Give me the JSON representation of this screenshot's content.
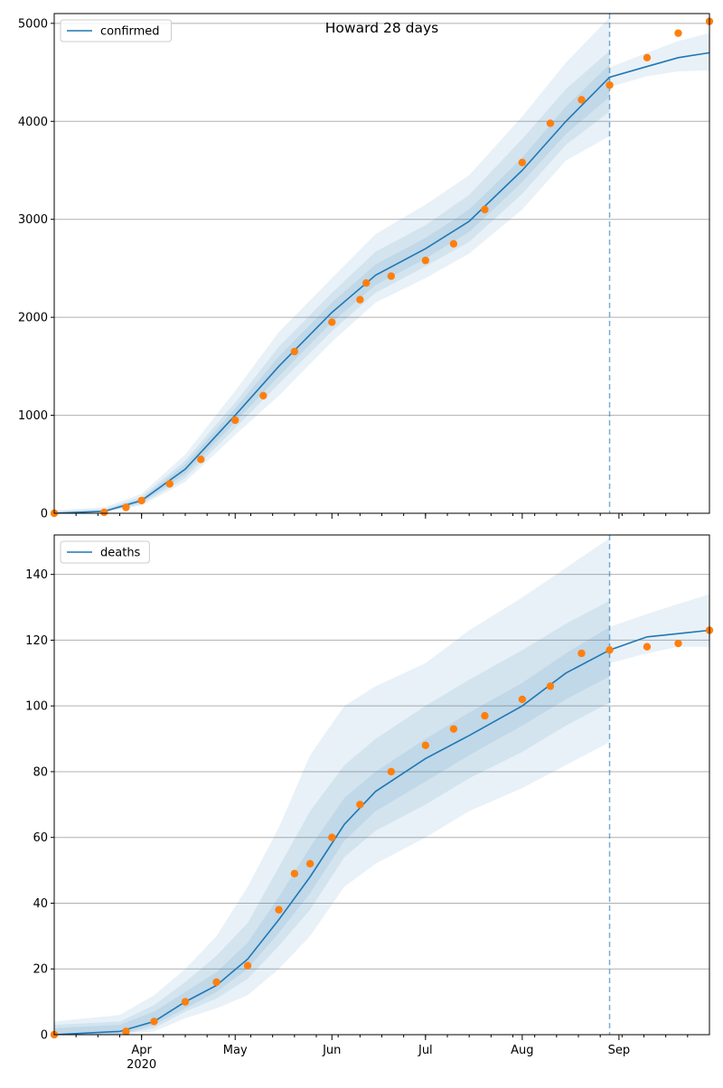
{
  "colors": {
    "model": "#1f77b4",
    "observed": "#ff7f0e",
    "band": "#1f77b4",
    "grid": "#b0b0b0"
  },
  "chart_data": [
    {
      "type": "line",
      "title": "Howard 28 days",
      "legend": "top-left",
      "grid": "horizontal",
      "xlim": [
        "2020-03-04",
        "2020-09-30"
      ],
      "ylim": [
        0,
        5100
      ],
      "forecast_start": "2020-08-29",
      "x_ticks": [
        {
          "date": "2020-04-01",
          "label": "Apr"
        },
        {
          "date": "2020-05-01",
          "label": "May"
        },
        {
          "date": "2020-06-01",
          "label": "Jun"
        },
        {
          "date": "2020-07-01",
          "label": "Jul"
        },
        {
          "date": "2020-08-01",
          "label": "Aug"
        },
        {
          "date": "2020-09-01",
          "label": "Sep"
        }
      ],
      "x_year_label": "2020",
      "y_ticks": [
        0,
        1000,
        2000,
        3000,
        4000,
        5000
      ],
      "series": [
        {
          "name": "confirmed",
          "kind": "model",
          "x": [
            "2020-03-04",
            "2020-03-20",
            "2020-04-01",
            "2020-04-15",
            "2020-05-01",
            "2020-05-15",
            "2020-06-01",
            "2020-06-15",
            "2020-07-01",
            "2020-07-15",
            "2020-08-01",
            "2020-08-15",
            "2020-08-29",
            "2020-09-10",
            "2020-09-20",
            "2020-09-30"
          ],
          "values": [
            0,
            20,
            130,
            450,
            1000,
            1500,
            2050,
            2430,
            2700,
            2980,
            3500,
            4000,
            4450,
            4560,
            4650,
            4700
          ]
        },
        {
          "name": "",
          "kind": "observed",
          "x": [
            "2020-03-04",
            "2020-03-20",
            "2020-03-27",
            "2020-04-01",
            "2020-04-10",
            "2020-04-20",
            "2020-05-01",
            "2020-05-10",
            "2020-05-20",
            "2020-06-01",
            "2020-06-10",
            "2020-06-12",
            "2020-06-20",
            "2020-07-01",
            "2020-07-10",
            "2020-07-20",
            "2020-08-01",
            "2020-08-10",
            "2020-08-20",
            "2020-08-29",
            "2020-09-10",
            "2020-09-20",
            "2020-09-30"
          ],
          "values": [
            0,
            10,
            60,
            130,
            300,
            550,
            950,
            1200,
            1650,
            1950,
            2180,
            2350,
            2420,
            2580,
            2750,
            3100,
            3580,
            3980,
            4220,
            4370,
            4650,
            4900,
            5020
          ]
        }
      ],
      "bands": [
        {
          "x": [
            "2020-03-04",
            "2020-03-20",
            "2020-04-01",
            "2020-04-15",
            "2020-05-01",
            "2020-05-15",
            "2020-06-01",
            "2020-06-15",
            "2020-07-01",
            "2020-07-15",
            "2020-08-01",
            "2020-08-15",
            "2020-08-29"
          ],
          "lower": [
            0,
            10,
            80,
            320,
            800,
            1200,
            1750,
            2150,
            2400,
            2650,
            3100,
            3600,
            3850
          ],
          "upper": [
            30,
            60,
            200,
            600,
            1250,
            1850,
            2400,
            2850,
            3150,
            3450,
            4050,
            4600,
            5060
          ]
        },
        {
          "x": [
            "2020-03-04",
            "2020-03-20",
            "2020-04-01",
            "2020-04-15",
            "2020-05-01",
            "2020-05-15",
            "2020-06-01",
            "2020-06-15",
            "2020-07-01",
            "2020-07-15",
            "2020-08-01",
            "2020-08-15",
            "2020-08-29"
          ],
          "lower": [
            0,
            12,
            95,
            360,
            870,
            1320,
            1860,
            2250,
            2520,
            2770,
            3260,
            3760,
            4100
          ],
          "upper": [
            20,
            40,
            170,
            540,
            1130,
            1700,
            2250,
            2670,
            2940,
            3250,
            3820,
            4330,
            4720
          ]
        },
        {
          "x": [
            "2020-03-04",
            "2020-03-20",
            "2020-04-01",
            "2020-04-15",
            "2020-05-01",
            "2020-05-15",
            "2020-06-01",
            "2020-06-15",
            "2020-07-01",
            "2020-07-15",
            "2020-08-01",
            "2020-08-15",
            "2020-08-29"
          ],
          "lower": [
            0,
            15,
            110,
            400,
            930,
            1400,
            1950,
            2330,
            2600,
            2870,
            3380,
            3870,
            4250
          ],
          "upper": [
            10,
            30,
            150,
            500,
            1070,
            1600,
            2150,
            2540,
            2810,
            3100,
            3630,
            4150,
            4580
          ]
        },
        {
          "x": [
            "2020-08-29",
            "2020-09-10",
            "2020-09-20",
            "2020-09-30"
          ],
          "lower": [
            4350,
            4460,
            4510,
            4520
          ],
          "upper": [
            4550,
            4700,
            4820,
            4900
          ]
        }
      ]
    },
    {
      "type": "line",
      "title": "",
      "legend": "top-left",
      "grid": "horizontal",
      "xlim": [
        "2020-03-04",
        "2020-09-30"
      ],
      "ylim": [
        0,
        152
      ],
      "forecast_start": "2020-08-29",
      "x_ticks": [
        {
          "date": "2020-04-01",
          "label": "Apr"
        },
        {
          "date": "2020-05-01",
          "label": "May"
        },
        {
          "date": "2020-06-01",
          "label": "Jun"
        },
        {
          "date": "2020-07-01",
          "label": "Jul"
        },
        {
          "date": "2020-08-01",
          "label": "Aug"
        },
        {
          "date": "2020-09-01",
          "label": "Sep"
        }
      ],
      "x_year_label": "2020",
      "y_ticks": [
        0,
        20,
        40,
        60,
        80,
        100,
        120,
        140
      ],
      "series": [
        {
          "name": "deaths",
          "kind": "model",
          "x": [
            "2020-03-04",
            "2020-03-25",
            "2020-04-05",
            "2020-04-15",
            "2020-04-25",
            "2020-05-05",
            "2020-05-15",
            "2020-05-25",
            "2020-06-05",
            "2020-06-15",
            "2020-07-01",
            "2020-07-15",
            "2020-08-01",
            "2020-08-15",
            "2020-08-29",
            "2020-09-10",
            "2020-09-20",
            "2020-09-30"
          ],
          "values": [
            0,
            1,
            4,
            10,
            15,
            23,
            35,
            48,
            64,
            74,
            84,
            91,
            100,
            110,
            117,
            121,
            122,
            123
          ]
        },
        {
          "name": "",
          "kind": "observed",
          "x": [
            "2020-03-04",
            "2020-03-27",
            "2020-04-05",
            "2020-04-15",
            "2020-04-25",
            "2020-05-05",
            "2020-05-15",
            "2020-05-20",
            "2020-05-25",
            "2020-06-01",
            "2020-06-10",
            "2020-06-20",
            "2020-07-01",
            "2020-07-10",
            "2020-07-20",
            "2020-08-01",
            "2020-08-10",
            "2020-08-20",
            "2020-08-29",
            "2020-09-10",
            "2020-09-20",
            "2020-09-30"
          ],
          "values": [
            0,
            1,
            4,
            10,
            16,
            21,
            38,
            49,
            52,
            60,
            70,
            80,
            88,
            93,
            97,
            102,
            106,
            116,
            117,
            118,
            119,
            123
          ]
        }
      ],
      "bands": [
        {
          "x": [
            "2020-03-04",
            "2020-03-25",
            "2020-04-05",
            "2020-04-15",
            "2020-04-25",
            "2020-05-05",
            "2020-05-15",
            "2020-05-25",
            "2020-06-05",
            "2020-06-15",
            "2020-07-01",
            "2020-07-15",
            "2020-08-01",
            "2020-08-15",
            "2020-08-29"
          ],
          "lower": [
            0,
            0,
            1,
            5,
            8,
            12,
            20,
            30,
            45,
            52,
            60,
            68,
            75,
            82,
            89
          ],
          "upper": [
            4,
            6,
            12,
            20,
            30,
            45,
            63,
            85,
            100,
            106,
            113,
            123,
            133,
            142,
            151
          ]
        },
        {
          "x": [
            "2020-03-04",
            "2020-03-25",
            "2020-04-05",
            "2020-04-15",
            "2020-04-25",
            "2020-05-05",
            "2020-05-15",
            "2020-05-25",
            "2020-06-05",
            "2020-06-15",
            "2020-07-01",
            "2020-07-15",
            "2020-08-01",
            "2020-08-15",
            "2020-08-29"
          ],
          "lower": [
            0,
            0,
            2,
            7,
            11,
            17,
            27,
            38,
            54,
            62,
            70,
            78,
            86,
            94,
            101
          ],
          "upper": [
            3,
            4,
            9,
            16,
            24,
            34,
            51,
            68,
            82,
            90,
            100,
            108,
            117,
            125,
            132
          ]
        },
        {
          "x": [
            "2020-03-04",
            "2020-03-25",
            "2020-04-05",
            "2020-04-15",
            "2020-04-25",
            "2020-05-05",
            "2020-05-15",
            "2020-05-25",
            "2020-06-05",
            "2020-06-15",
            "2020-07-01",
            "2020-07-15",
            "2020-08-01",
            "2020-08-15",
            "2020-08-29"
          ],
          "lower": [
            0,
            0,
            3,
            8,
            13,
            20,
            31,
            43,
            59,
            68,
            77,
            85,
            94,
            102,
            109
          ],
          "upper": [
            2,
            3,
            7,
            13,
            19,
            28,
            42,
            57,
            72,
            80,
            90,
            98,
            107,
            116,
            124
          ]
        },
        {
          "x": [
            "2020-08-29",
            "2020-09-10",
            "2020-09-20",
            "2020-09-30"
          ],
          "lower": [
            113,
            116,
            118,
            118
          ],
          "upper": [
            124,
            128,
            131,
            134
          ]
        }
      ]
    }
  ]
}
